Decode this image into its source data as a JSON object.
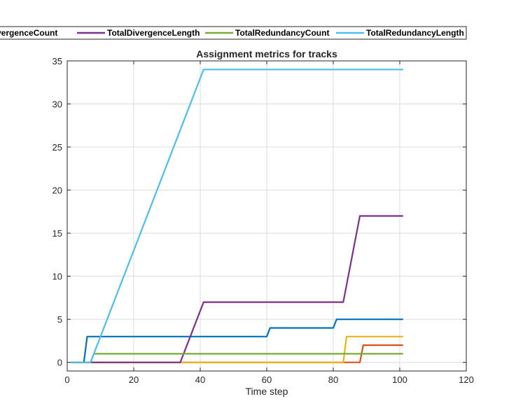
{
  "chart_data": {
    "type": "line",
    "title": "Assignment metrics for tracks",
    "xlabel": "Time step",
    "ylabel": "",
    "xlim": [
      0,
      120
    ],
    "ylim": [
      -1,
      35
    ],
    "xticks": [
      0,
      20,
      40,
      60,
      80,
      100,
      120
    ],
    "yticks": [
      0,
      5,
      10,
      15,
      20,
      25,
      30,
      35
    ],
    "grid": true,
    "legend_placement": "top, above plot (horizontal, clipped at left)",
    "series": [
      {
        "name": "TotalDivergenceCount",
        "legend_text": "DivergenceCount",
        "color": "#0072BD",
        "x": [
          1,
          5,
          6,
          60,
          61,
          80,
          81,
          101
        ],
        "y": [
          0,
          0,
          3,
          3,
          4,
          4,
          5,
          5
        ]
      },
      {
        "name": "",
        "color": "#D95319",
        "x": [
          1,
          34,
          88,
          89,
          101
        ],
        "y": [
          0,
          0,
          0,
          2,
          2
        ]
      },
      {
        "name": "",
        "color": "#EDB120",
        "x": [
          1,
          83,
          84,
          101
        ],
        "y": [
          0,
          0,
          3,
          3
        ]
      },
      {
        "name": "TotalDivergenceLength",
        "legend_text": "TotalDivergenceLength",
        "color": "#7E2F8E",
        "x": [
          1,
          34,
          41,
          83,
          88,
          101
        ],
        "y": [
          0,
          0,
          7,
          7,
          17,
          17
        ]
      },
      {
        "name": "TotalRedundancyCount",
        "legend_text": "TotalRedundancyCount",
        "color": "#77AC30",
        "x": [
          1,
          7,
          8,
          101
        ],
        "y": [
          0,
          0,
          1,
          1
        ]
      },
      {
        "name": "TotalRedundancyLength",
        "legend_text": "TotalRedundancyLength",
        "color": "#4DBEEE",
        "x": [
          1,
          7,
          41,
          101
        ],
        "y": [
          0,
          0,
          34,
          34
        ]
      }
    ],
    "legend": [
      {
        "label": "DivergenceCount",
        "color": "#0072BD"
      },
      {
        "label": "TotalDivergenceLength",
        "color": "#7E2F8E"
      },
      {
        "label": "TotalRedundancyCount",
        "color": "#77AC30"
      },
      {
        "label": "TotalRedundancyLength",
        "color": "#4DBEEE"
      }
    ]
  }
}
